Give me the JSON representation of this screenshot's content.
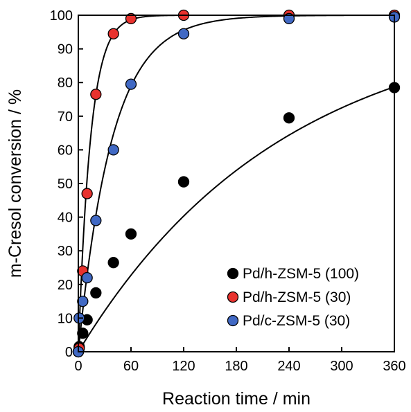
{
  "chart_data": {
    "type": "scatter",
    "xlabel": "Reaction time / min",
    "ylabel": "m-Cresol conversion / %",
    "xlim": [
      0,
      360
    ],
    "ylim": [
      0,
      100
    ],
    "xticks": [
      0,
      60,
      120,
      180,
      240,
      300,
      360
    ],
    "yticks": [
      0,
      10,
      20,
      30,
      40,
      50,
      60,
      70,
      80,
      90,
      100
    ],
    "grid": false,
    "fit_curves": true,
    "legend_position": "bottom-right",
    "series": [
      {
        "name": "Pd/h-ZSM-5 (100)",
        "color": "#000000",
        "x": [
          0,
          1,
          5,
          10,
          20,
          40,
          60,
          120,
          240,
          360
        ],
        "y": [
          0,
          1.5,
          5.5,
          9.5,
          17.5,
          26.5,
          35,
          50.5,
          69.5,
          78.5
        ],
        "fit_k": 0.0043
      },
      {
        "name": "Pd/h-ZSM-5 (30)",
        "color": "#e8322e",
        "x": [
          0,
          1,
          5,
          10,
          20,
          40,
          60,
          120,
          240,
          360
        ],
        "y": [
          0,
          1,
          24,
          47,
          76.5,
          94.5,
          99,
          100,
          100,
          100
        ],
        "fit_k": 0.072
      },
      {
        "name": "Pd/c-ZSM-5 (30)",
        "color": "#4169c4",
        "x": [
          0,
          1,
          5,
          10,
          20,
          40,
          60,
          120,
          240,
          360
        ],
        "y": [
          0,
          10,
          15,
          22,
          39,
          60,
          79.5,
          94.5,
          99,
          99.5
        ],
        "fit_k": 0.026
      }
    ]
  }
}
